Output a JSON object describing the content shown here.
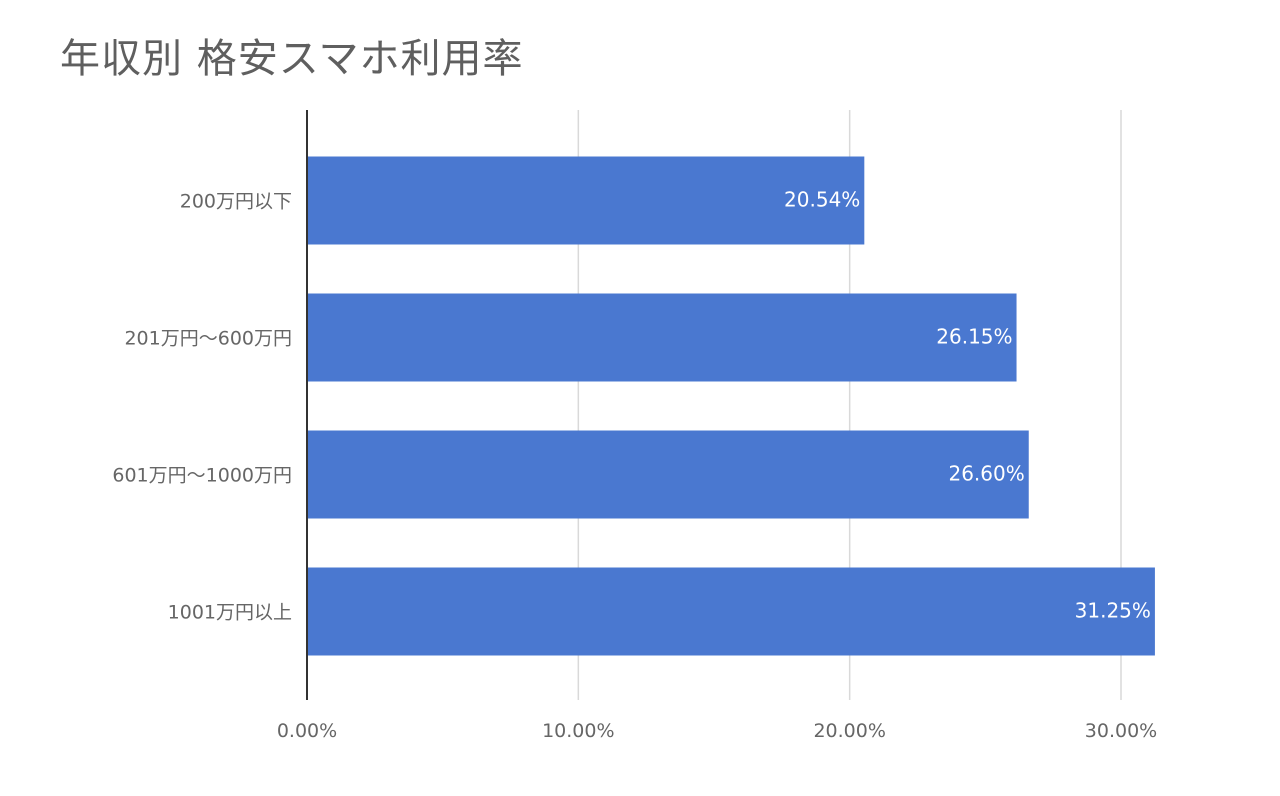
{
  "chart_data": {
    "type": "bar",
    "orientation": "horizontal",
    "title": "年収別 格安スマホ利用率",
    "categories": [
      "200万円以下",
      "201万円〜600万円",
      "601万円〜1000万円",
      "1001万円以上"
    ],
    "values": [
      20.54,
      26.15,
      26.6,
      31.25
    ],
    "value_labels": [
      "20.54%",
      "26.15%",
      "26.60%",
      "31.25%"
    ],
    "xlim": [
      0,
      30
    ],
    "x_ticks": [
      0,
      10,
      20,
      30
    ],
    "x_tick_labels": [
      "0.00%",
      "10.00%",
      "20.00%",
      "30.00%"
    ],
    "grid": true,
    "bar_color": "#4a78d0",
    "grid_color": "#d9d9d9",
    "axis_color": "#333333"
  }
}
